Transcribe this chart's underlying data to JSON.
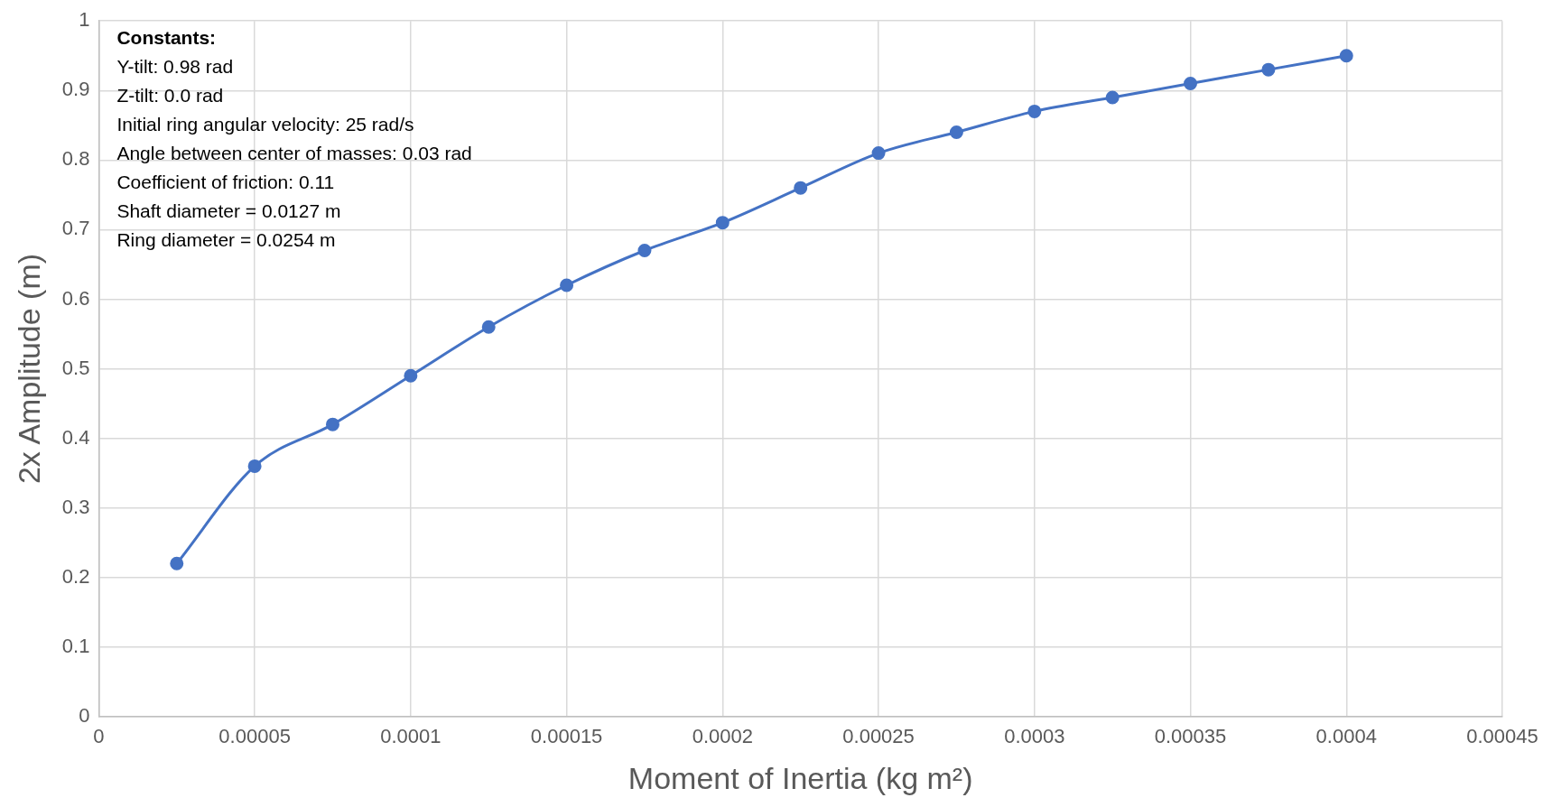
{
  "chart_data": {
    "type": "line",
    "xlabel": "Moment of Inertia (kg m²)",
    "ylabel": "2x Amplitude (m)",
    "x": [
      2.5e-05,
      5e-05,
      7.5e-05,
      0.0001,
      0.000125,
      0.00015,
      0.000175,
      0.0002,
      0.000225,
      0.00025,
      0.000275,
      0.0003,
      0.000325,
      0.00035,
      0.000375,
      0.0004
    ],
    "series": [
      {
        "color": "#4472c4",
        "values": [
          0.22,
          0.36,
          0.42,
          0.49,
          0.56,
          0.62,
          0.67,
          0.71,
          0.76,
          0.81,
          0.84,
          0.87,
          0.89,
          0.91,
          0.93,
          0.95
        ]
      }
    ],
    "xlim": [
      0,
      0.00045
    ],
    "xticks": [
      0,
      {
        "value": 5e-05,
        "label": "0.00005"
      },
      0.0001,
      0.00015,
      0.0002,
      0.00025,
      0.0003,
      0.00035,
      0.0004,
      0.00045
    ],
    "ylim": [
      0,
      1
    ],
    "yticks": [
      0,
      0.1,
      0.2,
      0.3,
      0.4,
      0.5,
      0.6,
      0.7,
      0.8,
      0.9,
      1
    ],
    "grid": true,
    "legend": false,
    "marker": "circle",
    "line_style": "solid",
    "annotations": [
      "Constants:",
      "Y-tilt: 0.98 rad",
      "Z-tilt: 0.0 rad",
      "Initial ring angular velocity: 25 rad/s",
      "Angle between center of masses: 0.03 rad",
      "Coefficient of friction: 0.11",
      "Shaft diameter = 0.0127 m",
      "Ring diameter = 0.0254 m"
    ]
  }
}
